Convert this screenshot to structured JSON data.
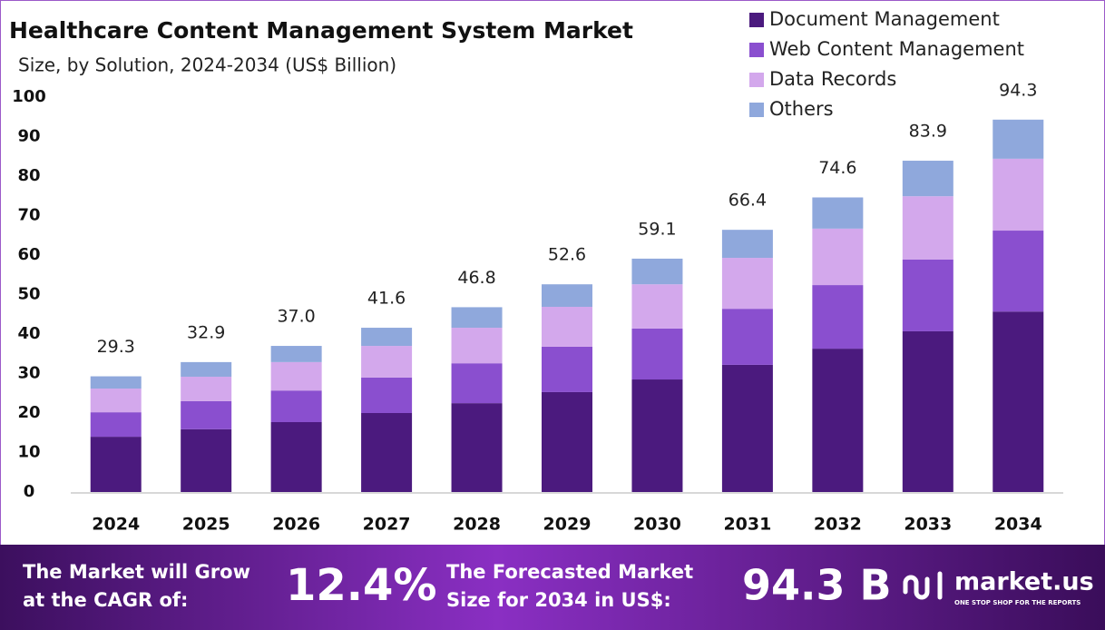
{
  "chart_data": {
    "type": "stacked-bar",
    "title": "Healthcare Content Management System Market",
    "subtitle": "Size, by Solution, 2024-2034 (US$ Billion)",
    "categories": [
      "2024",
      "2025",
      "2026",
      "2027",
      "2028",
      "2029",
      "2030",
      "2031",
      "2032",
      "2033",
      "2034"
    ],
    "series": [
      {
        "name": "Document Management",
        "color": "#4b1a7e",
        "values": [
          14.0,
          15.9,
          17.7,
          20.0,
          22.5,
          25.3,
          28.5,
          32.2,
          36.3,
          40.7,
          45.7
        ]
      },
      {
        "name": "Web Content Management",
        "color": "#8a4fcf",
        "values": [
          6.2,
          7.1,
          8.0,
          9.0,
          10.1,
          11.5,
          12.9,
          14.2,
          16.1,
          18.2,
          20.5
        ]
      },
      {
        "name": "Data Records",
        "color": "#d3a8ec",
        "values": [
          6.0,
          6.2,
          7.2,
          8.0,
          9.0,
          10.1,
          11.2,
          12.9,
          14.3,
          16.0,
          18.2
        ]
      },
      {
        "name": "Others",
        "color": "#8fa8dc",
        "values": [
          3.1,
          3.7,
          4.1,
          4.6,
          5.2,
          5.7,
          6.5,
          7.1,
          7.9,
          9.0,
          9.9
        ]
      }
    ],
    "totals": {
      "values": [
        29.3,
        32.9,
        37.0,
        41.6,
        46.8,
        52.6,
        59.1,
        66.4,
        74.6,
        83.9,
        94.3
      ],
      "value_labels": [
        "29.3",
        "32.9",
        "37.0",
        "41.6",
        "46.8",
        "52.6",
        "59.1",
        "66.4",
        "74.6",
        "83.9",
        "94.3"
      ]
    },
    "ylim": [
      0,
      100
    ],
    "yticks": [
      0,
      10,
      20,
      30,
      40,
      50,
      60,
      70,
      80,
      90,
      100
    ],
    "grid": false,
    "legend": "top-right"
  },
  "footer": {
    "cagr_text": [
      "The Market will Grow",
      "at the CAGR of:"
    ],
    "cagr_value": "12.4%",
    "forecast_text": [
      "The Forecasted Market",
      "Size for 2034 in US$:"
    ],
    "forecast_value": "94.3 B",
    "brand": "market.us",
    "tagline": "ONE STOP SHOP FOR THE REPORTS"
  }
}
